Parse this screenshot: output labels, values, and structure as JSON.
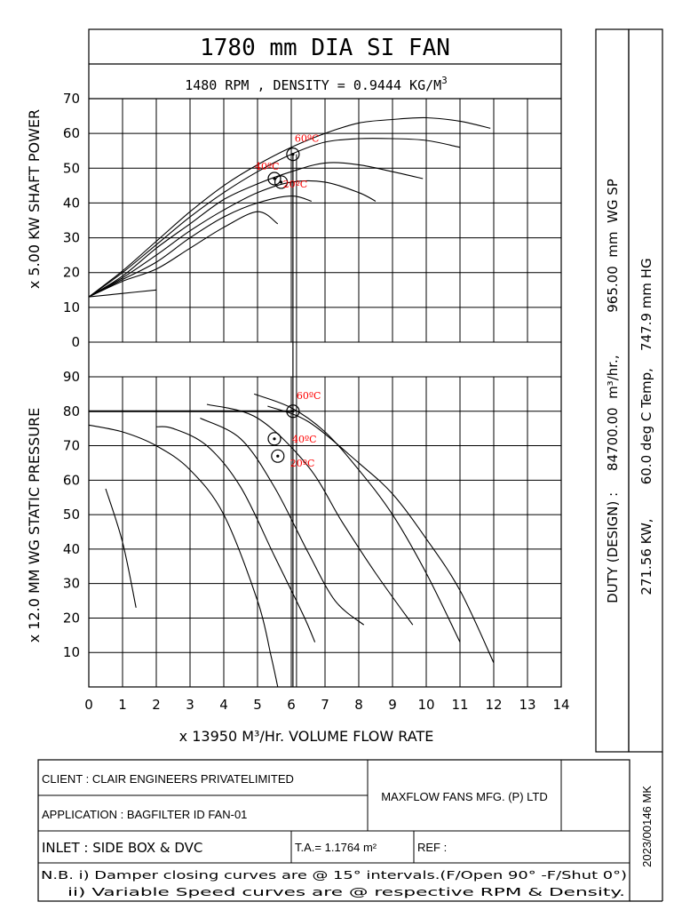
{
  "header": {
    "title": "1780 mm DIA SI FAN",
    "subtitle": "1480 RPM ,  DENSITY =  0.9444 KG/M",
    "subtitle_sup": "3"
  },
  "side_panel": {
    "duty_line": "DUTY (DESIGN) :     84700.00  m³/hr.,          965.00  mm  WG SP",
    "power_line": "271.56 KW,        60.0 deg C Temp,    747.9 mm HG"
  },
  "chart_data": [
    {
      "type": "line",
      "name": "shaft_power",
      "ylabel": "x 5.00 KW SHAFT POWER",
      "xlim": [
        0,
        14
      ],
      "ylim": [
        0,
        70
      ],
      "y_ticks": [
        0,
        10,
        20,
        30,
        40,
        50,
        60,
        70
      ],
      "series": [
        {
          "values": [
            [
              0,
              13
            ],
            [
              1,
              17.5
            ],
            [
              2,
              21
            ],
            [
              3,
              27
            ],
            [
              4,
              33
            ],
            [
              5,
              37.5
            ],
            [
              5.6,
              34
            ]
          ]
        },
        {
          "values": [
            [
              0,
              13
            ],
            [
              1,
              18
            ],
            [
              2,
              23
            ],
            [
              3,
              30
            ],
            [
              4,
              36
            ],
            [
              5,
              40
            ],
            [
              6,
              42
            ],
            [
              6.6,
              40.5
            ]
          ]
        },
        {
          "values": [
            [
              0,
              13
            ],
            [
              1,
              18.5
            ],
            [
              2,
              25
            ],
            [
              3,
              32
            ],
            [
              4,
              38
            ],
            [
              5,
              43
            ],
            [
              6,
              46
            ],
            [
              7,
              46
            ],
            [
              8,
              43
            ],
            [
              8.5,
              40.5
            ]
          ]
        },
        {
          "values": [
            [
              0,
              13
            ],
            [
              1,
              19
            ],
            [
              2,
              27
            ],
            [
              3,
              34
            ],
            [
              4,
              41
            ],
            [
              5,
              45.5
            ],
            [
              6,
              49
            ],
            [
              7,
              51.5
            ],
            [
              8,
              51
            ],
            [
              9,
              49
            ],
            [
              9.9,
              47
            ]
          ]
        },
        {
          "values": [
            [
              0,
              13
            ],
            [
              1,
              20
            ],
            [
              2,
              28
            ],
            [
              3,
              36
            ],
            [
              4,
              43
            ],
            [
              5,
              49
            ],
            [
              6,
              54
            ],
            [
              7,
              57.5
            ],
            [
              8,
              58.5
            ],
            [
              9,
              58.5
            ],
            [
              10,
              58
            ],
            [
              11,
              56
            ]
          ]
        },
        {
          "values": [
            [
              0,
              13
            ],
            [
              1,
              20.5
            ],
            [
              2,
              29
            ],
            [
              3,
              37.5
            ],
            [
              4,
              45
            ],
            [
              5,
              51
            ],
            [
              6,
              56
            ],
            [
              7,
              60
            ],
            [
              8,
              63
            ],
            [
              9,
              64
            ],
            [
              10,
              64.5
            ],
            [
              11,
              63.5
            ],
            [
              11.9,
              61.5
            ]
          ]
        },
        {
          "values": [
            [
              0,
              13
            ],
            [
              1,
              14
            ],
            [
              2,
              15
            ]
          ]
        }
      ],
      "markers": [
        {
          "x": 6.05,
          "y": 54,
          "label": "60ºC"
        },
        {
          "x": 5.5,
          "y": 47,
          "label": "40ºC"
        },
        {
          "x": 5.7,
          "y": 46,
          "label": "20ºC"
        }
      ]
    },
    {
      "type": "line",
      "name": "static_pressure",
      "ylabel": "x 12.0 MM WG STATIC PRESSURE",
      "xlabel": "x 13950 M³/Hr. VOLUME FLOW RATE",
      "xlim": [
        0,
        14
      ],
      "ylim": [
        0,
        90
      ],
      "x_ticks": [
        0,
        1,
        2,
        3,
        4,
        5,
        6,
        7,
        8,
        9,
        10,
        11,
        12,
        13,
        14
      ],
      "y_ticks": [
        10,
        20,
        30,
        40,
        50,
        60,
        70,
        80,
        90
      ],
      "series": [
        {
          "values": [
            [
              0.5,
              57.5
            ],
            [
              1,
              42
            ],
            [
              1.4,
              23
            ]
          ]
        },
        {
          "values": [
            [
              0,
              76
            ],
            [
              1,
              74
            ],
            [
              2,
              70
            ],
            [
              3,
              63
            ],
            [
              4,
              50
            ],
            [
              5,
              25
            ],
            [
              5.4,
              9
            ],
            [
              5.6,
              0
            ]
          ]
        },
        {
          "values": [
            [
              2,
              75.5
            ],
            [
              2.5,
              75
            ],
            [
              3.5,
              70
            ],
            [
              4.5,
              58
            ],
            [
              5.5,
              38
            ],
            [
              6.35,
              21
            ],
            [
              6.7,
              13
            ]
          ]
        },
        {
          "values": [
            [
              3.3,
              78
            ],
            [
              4.5,
              72
            ],
            [
              5.5,
              58
            ],
            [
              6.5,
              39
            ],
            [
              7.3,
              25
            ],
            [
              8.15,
              18
            ]
          ]
        },
        {
          "values": [
            [
              3.5,
              82
            ],
            [
              5,
              78
            ],
            [
              6.5,
              64
            ],
            [
              7.5,
              48
            ],
            [
              8.5,
              33
            ],
            [
              9.6,
              18
            ]
          ]
        },
        {
          "values": [
            [
              4.9,
              85
            ],
            [
              6,
              81
            ],
            [
              7,
              74
            ],
            [
              8,
              63
            ],
            [
              9,
              50
            ],
            [
              10,
              33
            ],
            [
              11,
              13
            ]
          ]
        },
        {
          "values": [
            [
              5.3,
              81.5
            ],
            [
              6.5,
              77
            ],
            [
              8,
              65
            ],
            [
              9,
              56
            ],
            [
              10,
              43
            ],
            [
              11,
              28
            ],
            [
              12,
              7
            ]
          ]
        }
      ],
      "duty_line": {
        "x0": 0,
        "x1": 6.05,
        "y": 80
      },
      "markers": [
        {
          "x": 6.05,
          "y": 80,
          "label": "60ºC"
        },
        {
          "x": 5.5,
          "y": 72,
          "label": "40ºC"
        },
        {
          "x": 5.6,
          "y": 67,
          "label": "20ºC"
        }
      ]
    }
  ],
  "title_block": {
    "client": "CLIENT : CLAIR ENGINEERS PRIVATELIMITED",
    "application": "APPLICATION : BAGFILTER ID FAN-01",
    "company": "MAXFLOW FANS MFG. (P) LTD",
    "inlet": "INLET : SIDE BOX & DVC",
    "ta": "T.A.= 1.1764 m² ",
    "ref": "REF :",
    "note1": "N.B. i) Damper closing curves are @ 15° intervals.(F/Open 90° -F/Shut 0°)",
    "note2": "ii) Variable Speed curves are @ respective RPM & Density.",
    "doc_no": "2023/00146 MK"
  }
}
